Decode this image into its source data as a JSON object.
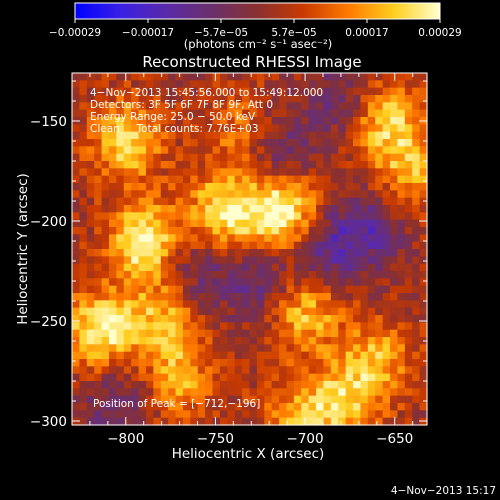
{
  "chart_data": {
    "type": "heatmap",
    "title": "Reconstructed RHESSI Image",
    "xlabel": "Heliocentric X (arcsec)",
    "ylabel": "Heliocentric Y (arcsec)",
    "xlim": [
      -830,
      -632
    ],
    "ylim": [
      -302,
      -126
    ],
    "x_ticks": [
      -800,
      -750,
      -700,
      -650
    ],
    "y_ticks": [
      -300,
      -250,
      -200,
      -150
    ],
    "x_tick_labels": [
      "−800",
      "−750",
      "−700",
      "−650"
    ],
    "y_tick_labels": [
      "−300",
      "−250",
      "−200",
      "−150"
    ],
    "colorbar": {
      "range": [
        -0.00029,
        0.00029
      ],
      "tick_labels": [
        "−0.00029",
        "−0.00017",
        "−5.7e−05",
        "5.7e−05",
        "0.00017",
        "0.00029"
      ],
      "unit_label": "(photons cm⁻² s⁻¹ asec⁻²)",
      "colors": [
        "#0000ff",
        "#3a20e6",
        "#5a2aa8",
        "#6b2f6b",
        "#8a3030",
        "#c83a00",
        "#ff7a00",
        "#ffcf20",
        "#ffffd0"
      ]
    },
    "annotations": [
      "4−Nov−2013 15:45:56.000 to 15:49:12.000",
      "Detectors: 3F 5F 6F 7F 8F 9F, Att 0",
      "Energy Range: 25.0 − 50.0 keV",
      "Clean     Total counts: 7.76E+03",
      "Position of Peak = [−712,−196]"
    ],
    "peak_position": [
      -712,
      -196
    ],
    "hotspots": [
      {
        "x": -712,
        "y": -196,
        "value": 0.00029
      },
      {
        "x": -745,
        "y": -195,
        "value": 0.00024
      },
      {
        "x": -790,
        "y": -210,
        "value": 0.00026
      },
      {
        "x": -800,
        "y": -160,
        "value": 0.00022
      },
      {
        "x": -815,
        "y": -255,
        "value": 0.00025
      },
      {
        "x": -780,
        "y": -250,
        "value": 0.00018
      },
      {
        "x": -770,
        "y": -280,
        "value": 0.00016
      },
      {
        "x": -700,
        "y": -245,
        "value": 0.0002
      },
      {
        "x": -680,
        "y": -290,
        "value": 0.00019
      },
      {
        "x": -660,
        "y": -270,
        "value": 0.00017
      },
      {
        "x": -655,
        "y": -150,
        "value": 0.00021
      },
      {
        "x": -640,
        "y": -175,
        "value": 0.00016
      },
      {
        "x": -735,
        "y": -155,
        "value": 0.00012
      },
      {
        "x": -705,
        "y": -300,
        "value": 0.00015
      }
    ],
    "coldspots": [
      {
        "x": -690,
        "y": -215,
        "value": -0.00014
      },
      {
        "x": -725,
        "y": -230,
        "value": -0.00012
      },
      {
        "x": -665,
        "y": -205,
        "value": -0.00013
      },
      {
        "x": -715,
        "y": -165,
        "value": -0.00011
      },
      {
        "x": -805,
        "y": -290,
        "value": -0.0001
      },
      {
        "x": -760,
        "y": -225,
        "value": -9e-05
      },
      {
        "x": -680,
        "y": -140,
        "value": -0.0001
      }
    ],
    "grid": false,
    "legend": "colorbar-top"
  },
  "footer": {
    "timestamp": "4−Nov−2013 15:17"
  }
}
